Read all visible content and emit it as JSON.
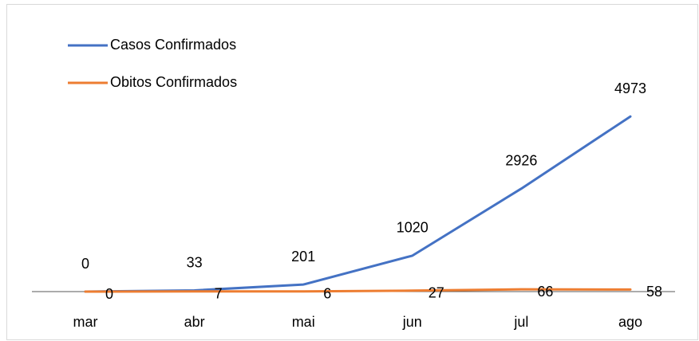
{
  "chart_data": {
    "type": "line",
    "categories": [
      "mar",
      "abr",
      "mai",
      "jun",
      "jul",
      "ago"
    ],
    "series": [
      {
        "name": "Casos Confirmados",
        "color": "#4472c4",
        "values": [
          0,
          33,
          201,
          1020,
          2926,
          4973
        ]
      },
      {
        "name": "Obitos Confirmados",
        "color": "#ed7d31",
        "values": [
          0,
          7,
          6,
          27,
          66,
          58
        ]
      }
    ],
    "ylim": [
      0,
      5000
    ],
    "legend": "top-left"
  }
}
